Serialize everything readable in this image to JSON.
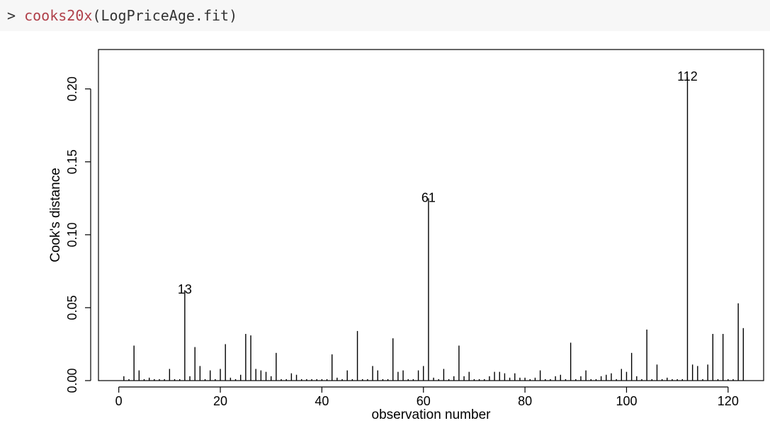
{
  "console": {
    "prompt": ">",
    "function": "cooks20x",
    "args": "(LogPriceAge.fit)"
  },
  "chart_data": {
    "type": "bar",
    "title": "",
    "xlabel": "observation number",
    "ylabel": "Cook's distance",
    "xlim": [
      -4,
      127
    ],
    "ylim": [
      0,
      0.227
    ],
    "xticks": [
      0,
      20,
      40,
      60,
      80,
      100,
      120
    ],
    "yticks": [
      "0.00",
      "0.05",
      "0.10",
      "0.15",
      "0.20"
    ],
    "grid": false,
    "x": [
      1,
      2,
      3,
      4,
      5,
      6,
      7,
      8,
      9,
      10,
      11,
      12,
      13,
      14,
      15,
      16,
      17,
      18,
      19,
      20,
      21,
      22,
      23,
      24,
      25,
      26,
      27,
      28,
      29,
      30,
      31,
      32,
      33,
      34,
      35,
      36,
      37,
      38,
      39,
      40,
      41,
      42,
      43,
      44,
      45,
      46,
      47,
      48,
      49,
      50,
      51,
      52,
      53,
      54,
      55,
      56,
      57,
      58,
      59,
      60,
      61,
      62,
      63,
      64,
      65,
      66,
      67,
      68,
      69,
      70,
      71,
      72,
      73,
      74,
      75,
      76,
      77,
      78,
      79,
      80,
      81,
      82,
      83,
      84,
      85,
      86,
      87,
      88,
      89,
      90,
      91,
      92,
      93,
      94,
      95,
      96,
      97,
      98,
      99,
      100,
      101,
      102,
      103,
      104,
      105,
      106,
      107,
      108,
      109,
      110,
      111,
      112,
      113,
      114,
      115,
      116,
      117,
      118,
      119,
      120,
      121,
      122,
      123
    ],
    "values": [
      0.003,
      0.001,
      0.024,
      0.007,
      0.001,
      0.002,
      0.001,
      0.001,
      0.001,
      0.008,
      0.001,
      0.001,
      0.062,
      0.003,
      0.023,
      0.01,
      0.001,
      0.007,
      0.001,
      0.008,
      0.025,
      0.002,
      0.001,
      0.004,
      0.032,
      0.031,
      0.008,
      0.007,
      0.006,
      0.003,
      0.019,
      0.001,
      0.001,
      0.005,
      0.004,
      0.001,
      0.001,
      0.001,
      0.001,
      0.001,
      0.001,
      0.018,
      0.002,
      0.001,
      0.007,
      0.001,
      0.034,
      0.001,
      0.001,
      0.01,
      0.007,
      0.001,
      0.001,
      0.029,
      0.006,
      0.007,
      0.001,
      0.001,
      0.007,
      0.01,
      0.125,
      0.002,
      0.001,
      0.008,
      0.001,
      0.003,
      0.024,
      0.003,
      0.006,
      0.001,
      0.001,
      0.001,
      0.003,
      0.006,
      0.006,
      0.005,
      0.002,
      0.005,
      0.002,
      0.002,
      0.001,
      0.002,
      0.007,
      0.001,
      0.001,
      0.003,
      0.004,
      0.001,
      0.026,
      0.001,
      0.003,
      0.007,
      0.001,
      0.001,
      0.003,
      0.004,
      0.005,
      0.001,
      0.008,
      0.006,
      0.019,
      0.003,
      0.001,
      0.035,
      0.001,
      0.011,
      0.001,
      0.002,
      0.001,
      0.001,
      0.001,
      0.208,
      0.011,
      0.01,
      0.001,
      0.011,
      0.032,
      0.001,
      0.032,
      0.001,
      0.001,
      0.053,
      0.036
    ],
    "annotations": [
      {
        "x": 13,
        "y": 0.062,
        "label": "13"
      },
      {
        "x": 61,
        "y": 0.125,
        "label": "61"
      },
      {
        "x": 112,
        "y": 0.208,
        "label": "112"
      }
    ]
  }
}
